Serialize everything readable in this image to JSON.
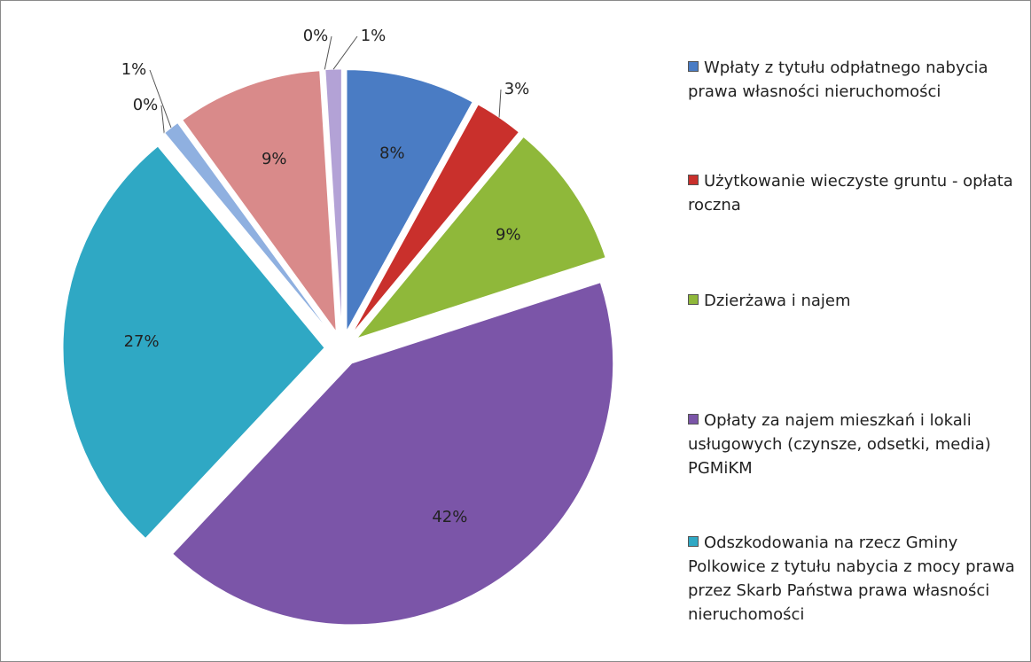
{
  "chart_data": {
    "type": "pie",
    "categories": [
      "Wpłaty z tytułu odpłatnego nabycia prawa własności nieruchomości",
      "Użytkowanie wieczyste gruntu - opłata roczna",
      "Dzierżawa i najem",
      "Opłaty za najem mieszkań i lokali usługowych (czynsze, odsetki, media) PGMiKM",
      "Odszkodowania na rzecz Gminy Polkowice z tytułu nabycia z mocy prawa przez Skarb Państwa prawa własności nieruchomości",
      null,
      null,
      null,
      null,
      null
    ],
    "values": [
      8,
      3,
      9,
      42,
      27,
      0,
      1,
      9,
      0,
      1
    ],
    "value_labels": [
      "8%",
      "3%",
      "9%",
      "42%",
      "27%",
      "0%",
      "1%",
      "9%",
      "0%",
      "1%"
    ],
    "colors": [
      "#4a7cc4",
      "#c9302c",
      "#8fb83a",
      "#7b55a8",
      "#2fa8c4",
      "#e8862a",
      "#8fb0e0",
      "#d98a8a",
      "#a8c46a",
      "#b3a2d6"
    ],
    "legend": "right"
  }
}
